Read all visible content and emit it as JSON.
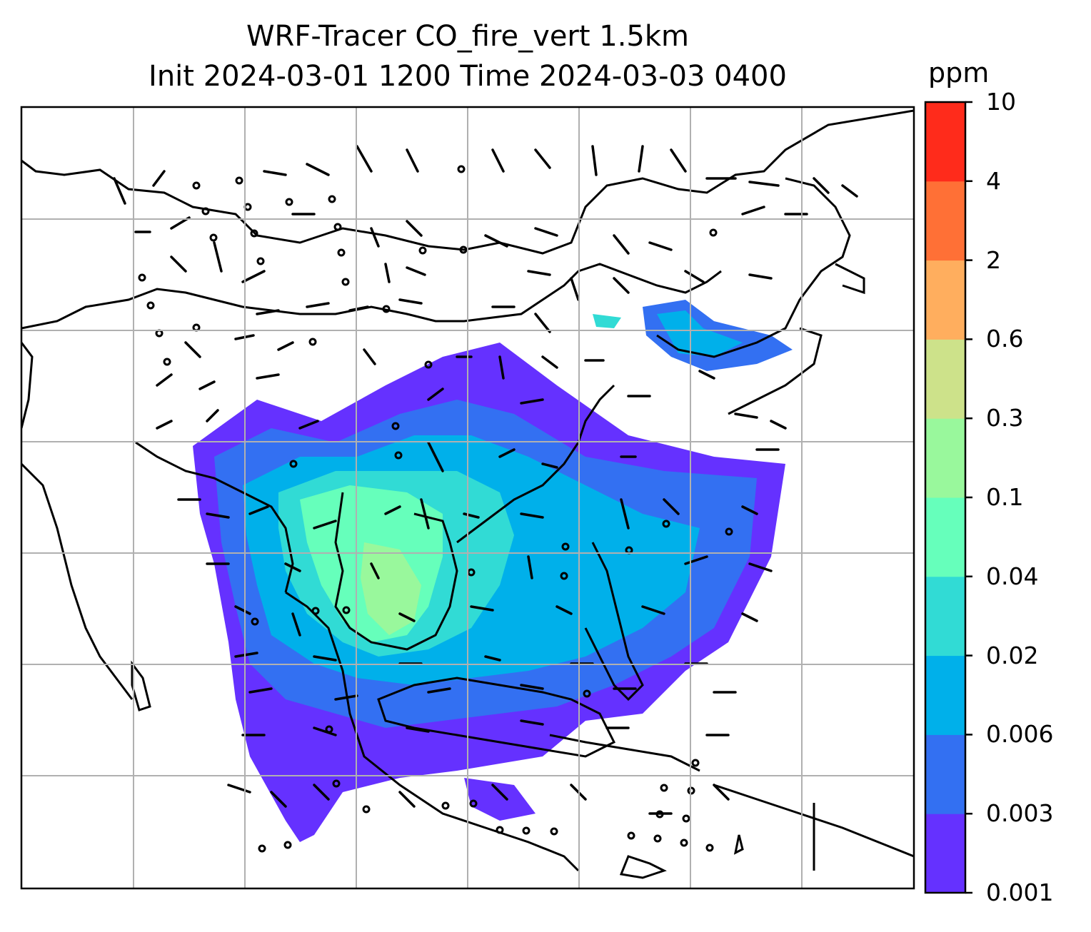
{
  "title": {
    "line1": "WRF-Tracer CO_fire_vert 1.5km",
    "line2": "Init 2024-03-01 1200 Time 2024-03-03 0400"
  },
  "colorbar": {
    "unit_label": "ppm",
    "tick_labels": [
      "0.001",
      "0.003",
      "0.006",
      "0.02",
      "0.04",
      "0.1",
      "0.3",
      "0.6",
      "2",
      "4",
      "10"
    ],
    "colors": [
      "#6531ff",
      "#3370f2",
      "#00b0ea",
      "#31dbd5",
      "#66ffbb",
      "#99f89c",
      "#cde28a",
      "#ffae5e",
      "#ff7036",
      "#ff2b1b"
    ]
  },
  "map": {
    "gridlines": true,
    "overlay": "wind barbs",
    "field": "CO fire tracer concentration"
  }
}
